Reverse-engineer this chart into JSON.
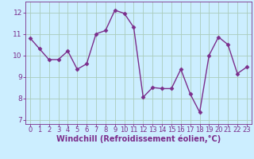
{
  "x": [
    0,
    1,
    2,
    3,
    4,
    5,
    6,
    7,
    8,
    9,
    10,
    11,
    12,
    13,
    14,
    15,
    16,
    17,
    18,
    19,
    20,
    21,
    22,
    23
  ],
  "y": [
    10.8,
    10.3,
    9.8,
    9.8,
    10.2,
    9.35,
    9.6,
    11.0,
    11.15,
    12.1,
    11.95,
    11.3,
    8.05,
    8.5,
    8.45,
    8.45,
    9.35,
    8.2,
    7.35,
    10.0,
    10.85,
    10.5,
    9.15,
    9.45
  ],
  "line_color": "#7b2d8b",
  "marker": "D",
  "markersize": 2.5,
  "linewidth": 1.0,
  "bg_color": "#cceeff",
  "grid_color": "#aaccbb",
  "xlabel": "Windchill (Refroidissement éolien,°C)",
  "xlabel_fontsize": 7,
  "ylim": [
    6.8,
    12.5
  ],
  "xlim": [
    -0.5,
    23.5
  ],
  "yticks": [
    7,
    8,
    9,
    10,
    11,
    12
  ],
  "xticks": [
    0,
    1,
    2,
    3,
    4,
    5,
    6,
    7,
    8,
    9,
    10,
    11,
    12,
    13,
    14,
    15,
    16,
    17,
    18,
    19,
    20,
    21,
    22,
    23
  ],
  "tick_color": "#7b2d8b",
  "tick_fontsize": 6,
  "spine_color": "#7b2d8b"
}
